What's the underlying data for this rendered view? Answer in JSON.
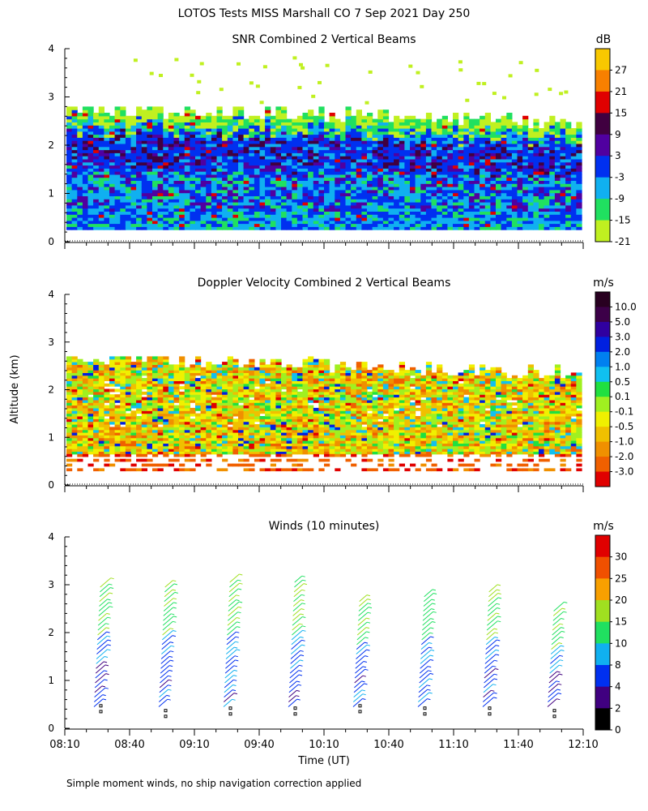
{
  "figure": {
    "title": "LOTOS Tests MISS Marshall CO   7 Sep 2021 Day 250",
    "ylabel": "Altitude (km)",
    "xlabel": "Time (UT)",
    "footnote": "Simple moment winds, no ship navigation correction applied"
  },
  "chart_data": [
    {
      "type": "heatmap",
      "title": "SNR Combined 2 Vertical Beams",
      "unit": "dB",
      "yticks": [
        "0",
        "1",
        "2",
        "3",
        "4"
      ],
      "ylim": [
        0,
        4
      ],
      "xlim": [
        "08:10",
        "12:10"
      ],
      "colorbar_labels": [
        "27",
        "21",
        "15",
        "9",
        "3",
        "-3",
        "-9",
        "-15",
        "-21"
      ],
      "colorbar_colors": [
        "#f8c800",
        "#f88000",
        "#e00000",
        "#400040",
        "#5000a0",
        "#0030f0",
        "#10b0f0",
        "#20e060",
        "#c0f020"
      ],
      "data_extent": {
        "top_altitude_km": 2.8,
        "bottom_altitude_km": 0.25
      }
    },
    {
      "type": "heatmap",
      "title": "Doppler Velocity Combined 2 Vertical Beams",
      "unit": "m/s",
      "yticks": [
        "0",
        "1",
        "2",
        "3",
        "4"
      ],
      "ylim": [
        0,
        4
      ],
      "xlim": [
        "08:10",
        "12:10"
      ],
      "colorbar_labels": [
        "10.0",
        "5.0",
        "3.0",
        "2.0",
        "1.0",
        "0.5",
        "0.1",
        "-0.1",
        "-0.5",
        "-1.0",
        "-2.0",
        "-3.0"
      ],
      "colorbar_colors": [
        "#280020",
        "#3c0048",
        "#3000a0",
        "#0020e0",
        "#0080f0",
        "#10c0f0",
        "#20e040",
        "#a0f020",
        "#f0f000",
        "#f0c000",
        "#f09000",
        "#f06000",
        "#e00000"
      ],
      "data_extent": {
        "top_altitude_km": 2.7,
        "bottom_altitude_km": 0.25
      }
    },
    {
      "type": "scatter",
      "title": "Winds (10 minutes)",
      "unit": "m/s",
      "yticks": [
        "0",
        "1",
        "2",
        "3",
        "4"
      ],
      "ylim": [
        0,
        4
      ],
      "xlim": [
        "08:10",
        "12:10"
      ],
      "xticks": [
        "08:10",
        "08:40",
        "09:10",
        "09:40",
        "10:10",
        "10:40",
        "11:10",
        "11:40",
        "12:10"
      ],
      "colorbar_labels": [
        "30",
        "25",
        "20",
        "15",
        "10",
        "8",
        "4",
        "2",
        "0"
      ],
      "colorbar_colors": [
        "#e00000",
        "#f05000",
        "#f8a000",
        "#a0e020",
        "#20e060",
        "#10b0f0",
        "#0030f0",
        "#400080",
        "#000000"
      ],
      "profiles": [
        {
          "time": "08:25",
          "top_km": 3.0,
          "bottom_km": 0.35
        },
        {
          "time": "08:55",
          "top_km": 3.05,
          "bottom_km": 0.25
        },
        {
          "time": "09:25",
          "top_km": 3.1,
          "bottom_km": 0.3
        },
        {
          "time": "09:55",
          "top_km": 3.1,
          "bottom_km": 0.3
        },
        {
          "time": "10:25",
          "top_km": 2.7,
          "bottom_km": 0.35
        },
        {
          "time": "10:55",
          "top_km": 2.8,
          "bottom_km": 0.3
        },
        {
          "time": "11:25",
          "top_km": 2.9,
          "bottom_km": 0.3
        },
        {
          "time": "11:55",
          "top_km": 2.45,
          "bottom_km": 0.25
        }
      ]
    }
  ]
}
